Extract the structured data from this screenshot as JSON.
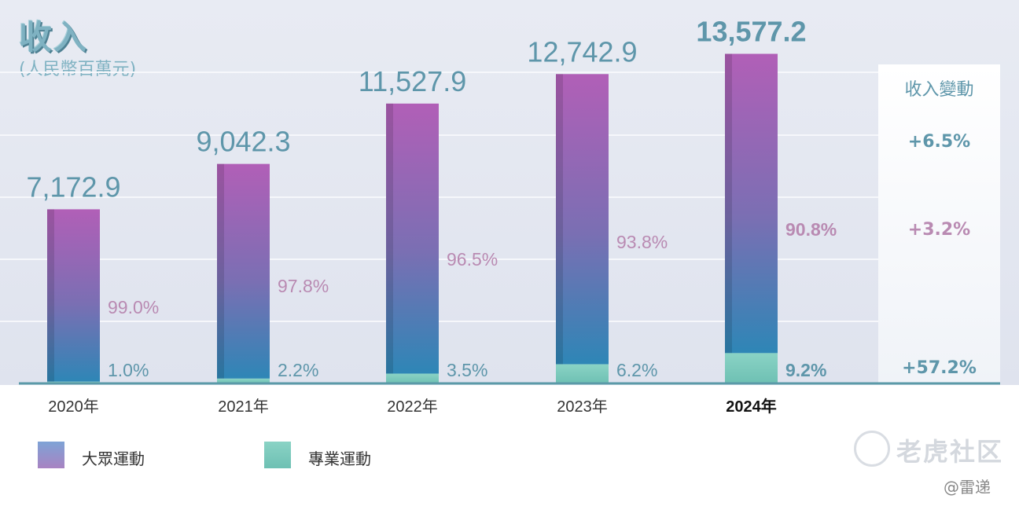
{
  "title": "收入",
  "subtitle": "(人民幣百萬元)",
  "chart_data": {
    "type": "bar",
    "stacked": true,
    "categories": [
      "2020年",
      "2021年",
      "2022年",
      "2023年",
      "2024年"
    ],
    "totals": [
      7172.9,
      9042.3,
      11527.9,
      12742.9,
      13577.2
    ],
    "total_labels": [
      "7,172.9",
      "9,042.3",
      "11,527.9",
      "12,742.9",
      "13,577.2"
    ],
    "ylim": [
      0,
      14500
    ],
    "series": [
      {
        "name": "大眾運動",
        "shares": [
          99.0,
          97.8,
          96.5,
          93.8,
          90.8
        ],
        "share_labels": [
          "99.0%",
          "97.8%",
          "96.5%",
          "93.8%",
          "90.8%"
        ]
      },
      {
        "name": "專業運動",
        "shares": [
          1.0,
          2.2,
          3.5,
          6.2,
          9.2
        ],
        "share_labels": [
          "1.0%",
          "2.2%",
          "3.5%",
          "6.2%",
          "9.2%"
        ]
      }
    ],
    "highlight_category": "2024年"
  },
  "change_panel": {
    "header": "收入變動",
    "total": "+6.5%",
    "mass": "+3.2%",
    "pro": "+57.2%"
  },
  "legend": {
    "mass": "大眾運動",
    "pro": "專業運動"
  },
  "watermark": "老虎社区",
  "credit": "@雷递",
  "colors": {
    "accent": "#5e96aa",
    "mass_label": "#b98ab2",
    "pro_label": "#5e96aa",
    "axis": "#5b9aa8"
  }
}
